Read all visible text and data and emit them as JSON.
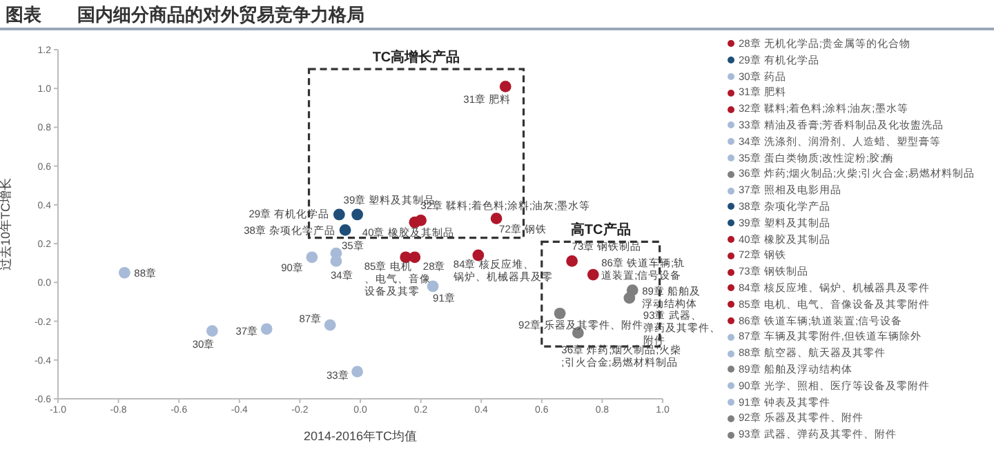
{
  "chart_data": {
    "type": "scatter",
    "title": "图表　　国内细分商品的对外贸易竞争力格局",
    "xlabel": "2014-2016年TC均值",
    "ylabel": "过去10年TC增长",
    "xlim": [
      -1.0,
      1.0
    ],
    "xticks": [
      {
        "value": -1,
        "label": "-1.0"
      },
      -0.8,
      -0.6,
      -0.4,
      -0.2,
      {
        "value": 0,
        "label": "0.0"
      },
      0.2,
      0.4,
      0.6,
      0.8,
      {
        "value": 1,
        "label": "1.0"
      }
    ],
    "ylim": [
      -0.6,
      1.2
    ],
    "yticks": [
      -0.6,
      -0.4,
      -0.2,
      {
        "value": 0,
        "label": "0.0"
      },
      0.2,
      0.4,
      0.6,
      0.8,
      {
        "value": 1,
        "label": "1.0"
      },
      1.2
    ],
    "marker": "circle",
    "legend": "right",
    "series": [
      {
        "name": "28章 无机化学品;贵金属等的化合物",
        "color": "#b0172a",
        "x": [
          0.18
        ],
        "values": [
          0.13
        ]
      },
      {
        "name": "29章 有机化学品",
        "color": "#1f4e79",
        "x": [
          -0.07
        ],
        "values": [
          0.35
        ]
      },
      {
        "name": "30章 药品",
        "color": "#a7bbd8",
        "x": [
          -0.49
        ],
        "values": [
          -0.25
        ]
      },
      {
        "name": "31章 肥料",
        "color": "#b0172a",
        "x": [
          0.48
        ],
        "values": [
          1.01
        ]
      },
      {
        "name": "32章 鞣料;着色料;涂料;油灰;墨水等",
        "color": "#b0172a",
        "x": [
          0.2
        ],
        "values": [
          0.32
        ]
      },
      {
        "name": "33章 精油及香膏;芳香料制品及化妆盥洗品",
        "color": "#a7bbd8",
        "x": [
          -0.01
        ],
        "values": [
          -0.46
        ]
      },
      {
        "name": "34章 洗涤剂、润滑剂、人造蜡、塑型膏等",
        "color": "#a7bbd8",
        "x": [
          -0.08
        ],
        "values": [
          0.11
        ]
      },
      {
        "name": "35章 蛋白类物质;改性淀粉;胶;酶",
        "color": "#a7bbd8",
        "x": [
          -0.08
        ],
        "values": [
          0.15
        ]
      },
      {
        "name": "36章 炸药;烟火制品;火柴;引火合金;易燃材料制品",
        "color": "#7f7f7f",
        "x": [
          0.72
        ],
        "values": [
          -0.26
        ]
      },
      {
        "name": "37章 照相及电影用品",
        "color": "#a7bbd8",
        "x": [
          -0.31
        ],
        "values": [
          -0.24
        ]
      },
      {
        "name": "38章 杂项化学产品",
        "color": "#1f4e79",
        "x": [
          -0.05
        ],
        "values": [
          0.27
        ]
      },
      {
        "name": "39章 塑料及其制品",
        "color": "#1f4e79",
        "x": [
          -0.01
        ],
        "values": [
          0.35
        ]
      },
      {
        "name": "40章 橡胶及其制品",
        "color": "#b0172a",
        "x": [
          0.18
        ],
        "values": [
          0.31
        ]
      },
      {
        "name": "72章 钢铁",
        "color": "#b0172a",
        "x": [
          0.45
        ],
        "values": [
          0.33
        ]
      },
      {
        "name": "73章 钢铁制品",
        "color": "#b0172a",
        "x": [
          0.7
        ],
        "values": [
          0.11
        ]
      },
      {
        "name": "84章 核反应堆、锅炉、机械器具及零件",
        "color": "#b0172a",
        "x": [
          0.39
        ],
        "values": [
          0.14
        ]
      },
      {
        "name": "85章 电机、电气、音像设备及其零附件",
        "color": "#b0172a",
        "x": [
          0.15
        ],
        "values": [
          0.13
        ]
      },
      {
        "name": "86章 铁道车辆;轨道装置;信号设备",
        "color": "#b0172a",
        "x": [
          0.77
        ],
        "values": [
          0.04
        ]
      },
      {
        "name": "87章 车辆及其零附件,但铁道车辆除外",
        "color": "#a7bbd8",
        "x": [
          -0.1
        ],
        "values": [
          -0.22
        ]
      },
      {
        "name": "88章 航空器、航天器及其零件",
        "color": "#a7bbd8",
        "x": [
          -0.78
        ],
        "values": [
          0.05
        ]
      },
      {
        "name": "89章 船舶及浮动结构体",
        "color": "#7f7f7f",
        "x": [
          0.9
        ],
        "values": [
          -0.04
        ]
      },
      {
        "name": "90章 光学、照相、医疗等设备及零附件",
        "color": "#a7bbd8",
        "x": [
          -0.16
        ],
        "values": [
          0.13
        ]
      },
      {
        "name": "91章 钟表及其零件",
        "color": "#a7bbd8",
        "x": [
          0.24
        ],
        "values": [
          -0.02
        ]
      },
      {
        "name": "92章 乐器及其零件、附件",
        "color": "#7f7f7f",
        "x": [
          0.66
        ],
        "values": [
          -0.16
        ]
      },
      {
        "name": "93章 武器、弹药及其零件、附件",
        "color": "#7f7f7f",
        "x": [
          0.89
        ],
        "values": [
          -0.08
        ]
      }
    ],
    "annotations": [
      {
        "text": "88章",
        "x": -0.78,
        "y": 0.05
      },
      {
        "text": "30章",
        "x": -0.49,
        "y": -0.25
      },
      {
        "text": "37章",
        "x": -0.31,
        "y": -0.24
      },
      {
        "text": "87章",
        "x": -0.1,
        "y": -0.22
      },
      {
        "text": "33章",
        "x": -0.01,
        "y": -0.46
      },
      {
        "text": "90章",
        "x": -0.16,
        "y": 0.13
      },
      {
        "text": "35章",
        "x": -0.08,
        "y": 0.15
      },
      {
        "text": "34章",
        "x": -0.08,
        "y": 0.11
      },
      {
        "text": "29章 有机化学品",
        "x": -0.07,
        "y": 0.35
      },
      {
        "text": "39章 塑料及其制品",
        "x": -0.01,
        "y": 0.35
      },
      {
        "text": "38章 杂项化学产品",
        "x": -0.05,
        "y": 0.27
      },
      {
        "text": "40章 橡胶及其制品",
        "x": 0.18,
        "y": 0.31
      },
      {
        "text": "31章 肥料",
        "x": 0.48,
        "y": 1.01
      },
      {
        "text": "32章 鞣料;着色料;涂料;油灰;墨水等",
        "x": 0.2,
        "y": 0.32
      },
      {
        "text": "72章 钢铁",
        "x": 0.45,
        "y": 0.33
      },
      {
        "text": "85章 电机、电气、音像设备及其零",
        "x": 0.15,
        "y": 0.13
      },
      {
        "text": "28章",
        "x": 0.18,
        "y": 0.13
      },
      {
        "text": "84章 核反应堆、锅炉、机械器具及零",
        "x": 0.39,
        "y": 0.14
      },
      {
        "text": "91章",
        "x": 0.24,
        "y": -0.02
      },
      {
        "text": "73章 钢铁制品",
        "x": 0.7,
        "y": 0.11
      },
      {
        "text": "86章 铁道车辆;轨道装置;信号设备",
        "x": 0.77,
        "y": 0.04
      },
      {
        "text": "89章 船舶及浮动结构体",
        "x": 0.9,
        "y": -0.04
      },
      {
        "text": "93章 武器、弹药及其零件、附件",
        "x": 0.89,
        "y": -0.08
      },
      {
        "text": "92章 乐器及其零件、附件",
        "x": 0.66,
        "y": -0.16
      },
      {
        "text": "36章 炸药;烟火制品;火柴;引火合金;易燃材料制品",
        "x": 0.72,
        "y": -0.26
      },
      "TC高增长产品",
      "高TC产品"
    ]
  }
}
